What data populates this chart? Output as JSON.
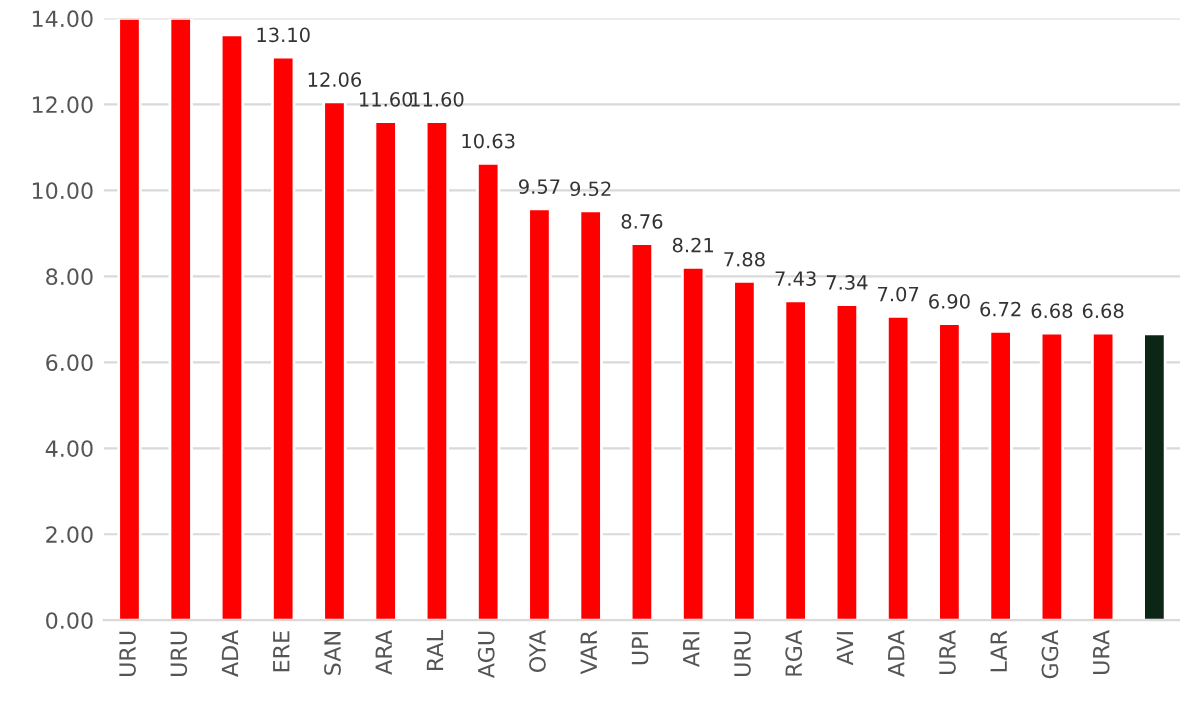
{
  "chart_data": {
    "type": "bar",
    "categories": [
      "URU",
      "URU",
      "ADA",
      "ERE",
      "SAN",
      "ARA",
      "RAL",
      "AGU",
      "OYA",
      "VAR",
      "UPI",
      "ARI",
      "URU",
      "RGA",
      "AVI",
      "ADA",
      "URA",
      "LAR",
      "GGA",
      "URA",
      null
    ],
    "values": [
      14,
      14,
      13.62,
      13.1,
      12.06,
      11.6,
      11.6,
      10.63,
      9.57,
      9.52,
      8.76,
      8.21,
      7.88,
      7.43,
      7.34,
      7.07,
      6.9,
      6.72,
      6.68,
      6.68,
      6.66
    ],
    "value_labels": [
      null,
      null,
      null,
      "13.10",
      "12.06",
      "11.60",
      "11.60",
      "10.63",
      "9.57",
      "9.52",
      "8.76",
      "8.21",
      "7.88",
      "7.43",
      "7.34",
      "7.07",
      "6.90",
      "6.72",
      "6.68",
      "6.68",
      null
    ],
    "colors": [
      "#ff0000",
      "#ff0000",
      "#ff0000",
      "#ff0000",
      "#ff0000",
      "#ff0000",
      "#ff0000",
      "#ff0000",
      "#ff0000",
      "#ff0000",
      "#ff0000",
      "#ff0000",
      "#ff0000",
      "#ff0000",
      "#ff0000",
      "#ff0000",
      "#ff0000",
      "#ff0000",
      "#ff0000",
      "#ff0000",
      "#0b2614"
    ],
    "ylim": [
      0,
      14
    ],
    "yticks": [
      {
        "value": 0,
        "label": "0.00"
      },
      {
        "value": 2,
        "label": "2.00"
      },
      {
        "value": 4,
        "label": "4.00"
      },
      {
        "value": 6,
        "label": "6.00"
      },
      {
        "value": 8,
        "label": "8.00"
      },
      {
        "value": 10,
        "label": "10.00"
      },
      {
        "value": 12,
        "label": "12.00"
      },
      {
        "value": 14,
        "label": "14.00"
      }
    ],
    "grid": "y"
  }
}
